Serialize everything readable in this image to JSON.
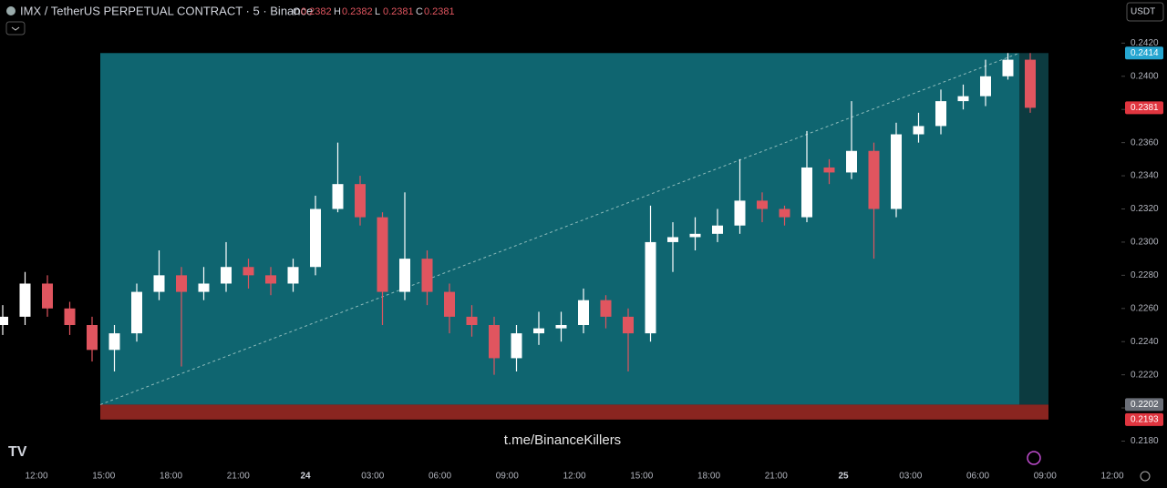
{
  "header": {
    "symbol": "IMX / TetherUS PERPETUAL CONTRACT · 5 · Binance",
    "ohlc": [
      {
        "label": "O",
        "value": 0.2382
      },
      {
        "label": "H",
        "value": 0.2382
      },
      {
        "label": "L",
        "value": 0.2381
      },
      {
        "label": "C",
        "value": 0.2381
      }
    ],
    "currency": "USDT"
  },
  "chart_data": {
    "type": "candlestick",
    "open": [
      0.225,
      0.2255,
      0.2275,
      0.226,
      0.225,
      0.2235,
      0.2245,
      0.227,
      0.228,
      0.227,
      0.2275,
      0.2285,
      0.228,
      0.2275,
      0.2285,
      0.232,
      0.2335,
      0.2315,
      0.227,
      0.229,
      0.227,
      0.2255,
      0.225,
      0.223,
      0.2245,
      0.2248,
      0.225,
      0.2265,
      0.2255,
      0.2245,
      0.23,
      0.2303,
      0.2305,
      0.231,
      0.2325,
      0.232,
      0.2315,
      0.2345,
      0.2342,
      0.2355,
      0.232,
      0.2365,
      0.237,
      0.2385,
      0.2388,
      0.24,
      0.241
    ],
    "high": [
      0.2262,
      0.2282,
      0.228,
      0.2264,
      0.2255,
      0.225,
      0.2275,
      0.2295,
      0.2285,
      0.2285,
      0.23,
      0.229,
      0.2285,
      0.229,
      0.2328,
      0.236,
      0.234,
      0.2318,
      0.233,
      0.2295,
      0.2275,
      0.2262,
      0.2255,
      0.225,
      0.2258,
      0.2258,
      0.2272,
      0.2268,
      0.226,
      0.2322,
      0.2312,
      0.2315,
      0.232,
      0.235,
      0.233,
      0.2322,
      0.2367,
      0.235,
      0.2385,
      0.236,
      0.2372,
      0.2378,
      0.2392,
      0.2395,
      0.241,
      0.2414,
      0.2414
    ],
    "low": [
      0.2244,
      0.225,
      0.2255,
      0.2244,
      0.2228,
      0.2222,
      0.224,
      0.2265,
      0.2225,
      0.2265,
      0.227,
      0.2272,
      0.2268,
      0.227,
      0.228,
      0.2318,
      0.231,
      0.225,
      0.2265,
      0.2262,
      0.2245,
      0.2243,
      0.222,
      0.2222,
      0.2238,
      0.224,
      0.2245,
      0.2248,
      0.2222,
      0.224,
      0.2282,
      0.2295,
      0.23,
      0.2305,
      0.2312,
      0.231,
      0.2312,
      0.2335,
      0.2338,
      0.229,
      0.2315,
      0.236,
      0.2365,
      0.238,
      0.2382,
      0.2398,
      0.2378
    ],
    "close": [
      0.2255,
      0.2275,
      0.226,
      0.225,
      0.2235,
      0.2245,
      0.227,
      0.228,
      0.227,
      0.2275,
      0.2285,
      0.228,
      0.2275,
      0.2285,
      0.232,
      0.2335,
      0.2315,
      0.227,
      0.229,
      0.227,
      0.2255,
      0.225,
      0.223,
      0.2245,
      0.2248,
      0.225,
      0.2265,
      0.2255,
      0.2245,
      0.23,
      0.2303,
      0.2305,
      0.231,
      0.2325,
      0.232,
      0.2315,
      0.2345,
      0.2342,
      0.2355,
      0.232,
      0.2365,
      0.237,
      0.2385,
      0.2388,
      0.24,
      0.241,
      0.2381
    ],
    "up_color": "#ffffff",
    "down_color": "#e0555f",
    "ylim": [
      0.2166,
      0.2446
    ],
    "yticks": [
      {
        "value": 0.218,
        "label": "0.2180"
      },
      {
        "value": 0.22,
        "label": "0.2200"
      },
      {
        "value": 0.222,
        "label": "0.2220"
      },
      {
        "value": 0.224,
        "label": "0.2240"
      },
      {
        "value": 0.226,
        "label": "0.2260"
      },
      {
        "value": 0.228,
        "label": "0.2280"
      },
      {
        "value": 0.23,
        "label": "0.2300"
      },
      {
        "value": 0.232,
        "label": "0.2320"
      },
      {
        "value": 0.234,
        "label": "0.2340"
      },
      {
        "value": 0.236,
        "label": "0.2360"
      },
      {
        "value": 0.238,
        "label": "0.2380"
      },
      {
        "value": 0.24,
        "label": "0.2400"
      },
      {
        "value": 0.242,
        "label": "0.2420"
      }
    ],
    "x_labels": [
      "12:00",
      "15:00",
      "18:00",
      "21:00",
      "24",
      "03:00",
      "06:00",
      "09:00",
      "12:00",
      "15:00",
      "18:00",
      "21:00",
      "25",
      "03:00",
      "06:00",
      "09:00",
      "12:00"
    ],
    "zone": {
      "top": 0.2414,
      "bottom": 0.2202,
      "stop": 0.2193
    },
    "levels": [
      {
        "value": 0.2414,
        "color": "#26a6d1"
      },
      {
        "value": 0.2381,
        "color": "#e0353f"
      },
      {
        "value": 0.2202,
        "color": "#6b6f78"
      },
      {
        "value": 0.2193,
        "color": "#e0353f"
      }
    ],
    "watermark": "t.me/BinanceKillers"
  }
}
